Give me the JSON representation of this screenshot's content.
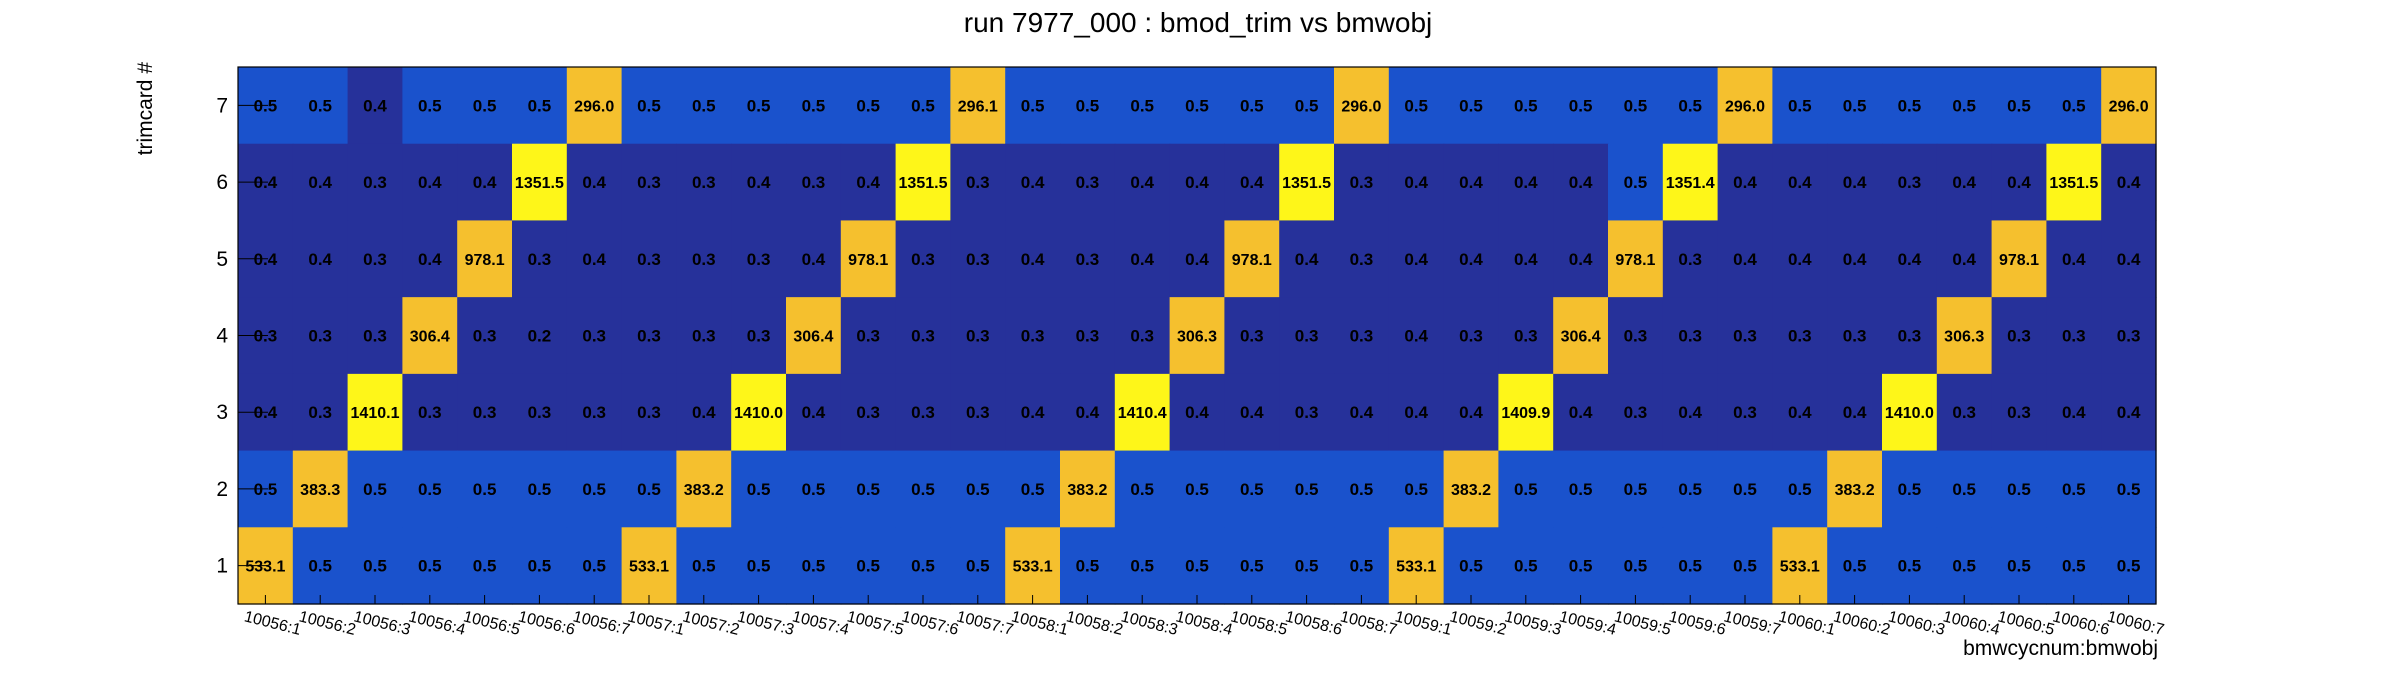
{
  "chart_data": {
    "type": "heatmap",
    "title": "run 7977_000 : bmod_trim vs bmwobj",
    "xlabel": "bmwcycnum:bmwobj",
    "ylabel": "trimcard #",
    "x_categories": [
      "10056:1",
      "10056:2",
      "10056:3",
      "10056:4",
      "10056:5",
      "10056:6",
      "10056:7",
      "10057:1",
      "10057:2",
      "10057:3",
      "10057:4",
      "10057:5",
      "10057:6",
      "10057:7",
      "10058:1",
      "10058:2",
      "10058:3",
      "10058:4",
      "10058:5",
      "10058:6",
      "10058:7",
      "10059:1",
      "10059:2",
      "10059:3",
      "10059:4",
      "10059:5",
      "10059:6",
      "10059:7",
      "10060:1",
      "10060:2",
      "10060:3",
      "10060:4",
      "10060:5",
      "10060:6",
      "10060:7"
    ],
    "y_categories": [
      "1",
      "2",
      "3",
      "4",
      "5",
      "6",
      "7"
    ],
    "rows": [
      {
        "y": "7",
        "values": [
          "0.5",
          "0.5",
          "0.4",
          "0.5",
          "0.5",
          "0.5",
          "296.0",
          "0.5",
          "0.5",
          "0.5",
          "0.5",
          "0.5",
          "0.5",
          "296.1",
          "0.5",
          "0.5",
          "0.5",
          "0.5",
          "0.5",
          "0.5",
          "296.0",
          "0.5",
          "0.5",
          "0.5",
          "0.5",
          "0.5",
          "0.5",
          "296.0",
          "0.5",
          "0.5",
          "0.5",
          "0.5",
          "0.5",
          "0.5",
          "296.0"
        ]
      },
      {
        "y": "6",
        "values": [
          "0.4",
          "0.4",
          "0.3",
          "0.4",
          "0.4",
          "1351.5",
          "0.4",
          "0.3",
          "0.3",
          "0.4",
          "0.3",
          "0.4",
          "1351.5",
          "0.3",
          "0.4",
          "0.3",
          "0.4",
          "0.4",
          "0.4",
          "1351.5",
          "0.3",
          "0.4",
          "0.4",
          "0.4",
          "0.4",
          "0.5",
          "1351.4",
          "0.4",
          "0.4",
          "0.4",
          "0.3",
          "0.4",
          "0.4",
          "1351.5",
          "0.4"
        ]
      },
      {
        "y": "5",
        "values": [
          "0.4",
          "0.4",
          "0.3",
          "0.4",
          "978.1",
          "0.3",
          "0.4",
          "0.3",
          "0.3",
          "0.3",
          "0.4",
          "978.1",
          "0.3",
          "0.3",
          "0.4",
          "0.3",
          "0.4",
          "0.4",
          "978.1",
          "0.4",
          "0.3",
          "0.4",
          "0.4",
          "0.4",
          "0.4",
          "978.1",
          "0.3",
          "0.4",
          "0.4",
          "0.4",
          "0.4",
          "0.4",
          "978.1",
          "0.4",
          "0.4"
        ]
      },
      {
        "y": "4",
        "values": [
          "0.3",
          "0.3",
          "0.3",
          "306.4",
          "0.3",
          "0.2",
          "0.3",
          "0.3",
          "0.3",
          "0.3",
          "306.4",
          "0.3",
          "0.3",
          "0.3",
          "0.3",
          "0.3",
          "0.3",
          "306.3",
          "0.3",
          "0.3",
          "0.3",
          "0.4",
          "0.3",
          "0.3",
          "306.4",
          "0.3",
          "0.3",
          "0.3",
          "0.3",
          "0.3",
          "0.3",
          "306.3",
          "0.3",
          "0.3",
          "0.3"
        ]
      },
      {
        "y": "3",
        "values": [
          "0.4",
          "0.3",
          "1410.1",
          "0.3",
          "0.3",
          "0.3",
          "0.3",
          "0.3",
          "0.4",
          "1410.0",
          "0.4",
          "0.3",
          "0.3",
          "0.3",
          "0.4",
          "0.4",
          "1410.4",
          "0.4",
          "0.4",
          "0.3",
          "0.4",
          "0.4",
          "0.4",
          "1409.9",
          "0.4",
          "0.3",
          "0.4",
          "0.3",
          "0.4",
          "0.4",
          "1410.0",
          "0.3",
          "0.3",
          "0.4",
          "0.4"
        ]
      },
      {
        "y": "2",
        "values": [
          "0.5",
          "383.3",
          "0.5",
          "0.5",
          "0.5",
          "0.5",
          "0.5",
          "0.5",
          "383.2",
          "0.5",
          "0.5",
          "0.5",
          "0.5",
          "0.5",
          "0.5",
          "383.2",
          "0.5",
          "0.5",
          "0.5",
          "0.5",
          "0.5",
          "0.5",
          "383.2",
          "0.5",
          "0.5",
          "0.5",
          "0.5",
          "0.5",
          "0.5",
          "383.2",
          "0.5",
          "0.5",
          "0.5",
          "0.5",
          "0.5"
        ]
      },
      {
        "y": "1",
        "values": [
          "533.1",
          "0.5",
          "0.5",
          "0.5",
          "0.5",
          "0.5",
          "0.5",
          "533.1",
          "0.5",
          "0.5",
          "0.5",
          "0.5",
          "0.5",
          "0.5",
          "533.1",
          "0.5",
          "0.5",
          "0.5",
          "0.5",
          "0.5",
          "0.5",
          "533.1",
          "0.5",
          "0.5",
          "0.5",
          "0.5",
          "0.5",
          "0.5",
          "533.1",
          "0.5",
          "0.5",
          "0.5",
          "0.5",
          "0.5",
          "0.5"
        ]
      }
    ],
    "colors": {
      "low_dark": "#26319a",
      "low_mid": "#1a52cc",
      "mid_orange": "#f5c02e",
      "high_yellow": "#fef619",
      "axis": "#000000",
      "background": "#ffffff"
    },
    "grid": false,
    "legend": "none"
  }
}
